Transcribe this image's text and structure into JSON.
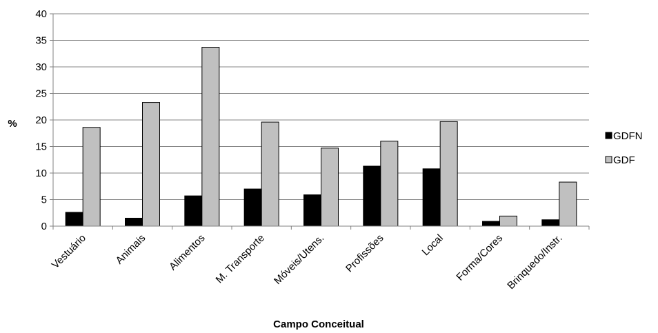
{
  "chart_data": {
    "type": "bar",
    "xlabel": "Campo Conceitual",
    "ylabel": "%",
    "ylim": [
      0,
      40
    ],
    "yticks": [
      0,
      5,
      10,
      15,
      20,
      25,
      30,
      35,
      40
    ],
    "grid": true,
    "legend_position": "right",
    "categories": [
      "Vestuário",
      "Animais",
      "Alimentos",
      "M. Transporte",
      "Móveis/Utens.",
      "Profissões",
      "Local",
      "Forma/Cores",
      "Brinquedo/Instr."
    ],
    "series": [
      {
        "name": "GDFN",
        "color": "#000000",
        "values": [
          2.6,
          1.5,
          5.7,
          7.0,
          5.9,
          11.3,
          10.8,
          0.9,
          1.2
        ]
      },
      {
        "name": "GDF",
        "color": "#c0c0c0",
        "values": [
          18.6,
          23.3,
          33.7,
          19.6,
          14.7,
          16.0,
          19.7,
          1.9,
          8.3
        ]
      }
    ]
  }
}
